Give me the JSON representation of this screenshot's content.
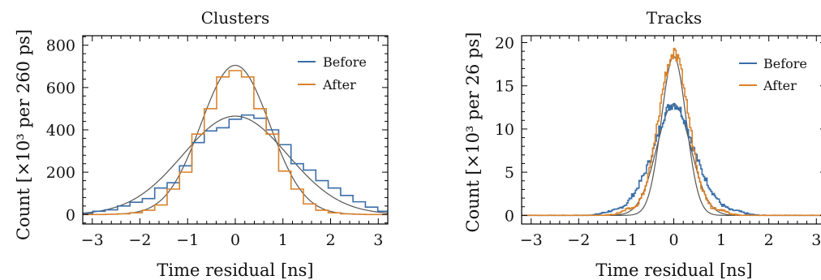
{
  "colors": {
    "before": "#3a6ea8",
    "after": "#d9822b",
    "fit": "#555555",
    "axis": "#000000"
  },
  "chart_data": [
    {
      "type": "histogram",
      "title": "Clusters",
      "xlabel": "Time residual [ns]",
      "ylabel": "Count [×10³ per 260 ps]",
      "xlim": [
        -3.2,
        3.2
      ],
      "ylim": [
        -45,
        845
      ],
      "xticks": [
        -3,
        -2,
        -1,
        0,
        1,
        2,
        3
      ],
      "yticks": [
        0,
        200,
        400,
        600,
        800
      ],
      "legend": {
        "position": "top-right",
        "entries": [
          "Before",
          "After"
        ]
      },
      "grid": false,
      "bin_width_ns": 0.26,
      "series": [
        {
          "name": "Before",
          "x": [
            -3.25,
            -2.99,
            -2.73,
            -2.47,
            -2.21,
            -1.95,
            -1.69,
            -1.43,
            -1.17,
            -0.91,
            -0.65,
            -0.39,
            -0.13,
            0.13,
            0.39,
            0.65,
            0.91,
            1.17,
            1.43,
            1.69,
            1.95,
            2.21,
            2.47,
            2.73,
            2.99
          ],
          "y": [
            5,
            15,
            22,
            40,
            58,
            75,
            125,
            150,
            230,
            340,
            395,
            410,
            450,
            470,
            455,
            400,
            330,
            240,
            210,
            160,
            125,
            90,
            60,
            35,
            15
          ]
        },
        {
          "name": "After",
          "x": [
            -3.25,
            -2.99,
            -2.73,
            -2.47,
            -2.21,
            -1.95,
            -1.69,
            -1.43,
            -1.17,
            -0.91,
            -0.65,
            -0.39,
            -0.13,
            0.13,
            0.39,
            0.65,
            0.91,
            1.17,
            1.43,
            1.69,
            1.95,
            2.21,
            2.47,
            2.73,
            2.99
          ],
          "y": [
            0,
            0,
            1,
            3,
            8,
            20,
            45,
            120,
            200,
            380,
            500,
            650,
            680,
            650,
            500,
            380,
            205,
            120,
            50,
            20,
            8,
            3,
            1,
            0,
            0
          ]
        }
      ],
      "fits": [
        {
          "amplitude": 705,
          "mean": 0,
          "sigma": 0.72
        },
        {
          "amplitude": 465,
          "mean": 0,
          "sigma": 1.1
        }
      ]
    },
    {
      "type": "histogram",
      "title": "Tracks",
      "xlabel": "Time residual [ns]",
      "ylabel": "Count [×10³ per 26 ps]",
      "xlim": [
        -3.2,
        3.2
      ],
      "ylim": [
        -1,
        20.8
      ],
      "xticks": [
        -3,
        -2,
        -1,
        0,
        1,
        2,
        3
      ],
      "yticks": [
        0,
        5,
        10,
        15,
        20
      ],
      "legend": {
        "position": "top-right",
        "entries": [
          "Before",
          "After"
        ]
      },
      "grid": false,
      "bin_width_ns": 0.026,
      "series": [
        {
          "name": "Before",
          "x": [
            -1.2,
            -1.0,
            -0.8,
            -0.6,
            -0.5,
            -0.4,
            -0.3,
            -0.2,
            -0.1,
            0.0,
            0.1,
            0.2,
            0.3,
            0.4,
            0.5,
            0.6,
            0.8,
            1.0,
            1.2
          ],
          "y": [
            0.6,
            1.3,
            2.8,
            5.0,
            6.5,
            8.0,
            10.0,
            11.5,
            12.6,
            13.0,
            12.6,
            11.5,
            10.0,
            8.0,
            6.5,
            5.0,
            2.8,
            1.3,
            0.6
          ]
        },
        {
          "name": "After",
          "x": [
            -0.8,
            -0.6,
            -0.5,
            -0.4,
            -0.3,
            -0.2,
            -0.1,
            0.0,
            0.1,
            0.2,
            0.3,
            0.4,
            0.5,
            0.6,
            0.8
          ],
          "y": [
            0.9,
            3.0,
            5.5,
            8.5,
            12.0,
            15.5,
            17.8,
            18.8,
            17.8,
            15.5,
            12.0,
            8.5,
            5.5,
            3.0,
            0.9
          ]
        }
      ],
      "fits": [
        {
          "amplitude": 18.4,
          "mean": 0,
          "sigma": 0.26
        },
        {
          "amplitude": 12.9,
          "mean": 0,
          "sigma": 0.36
        }
      ]
    }
  ]
}
